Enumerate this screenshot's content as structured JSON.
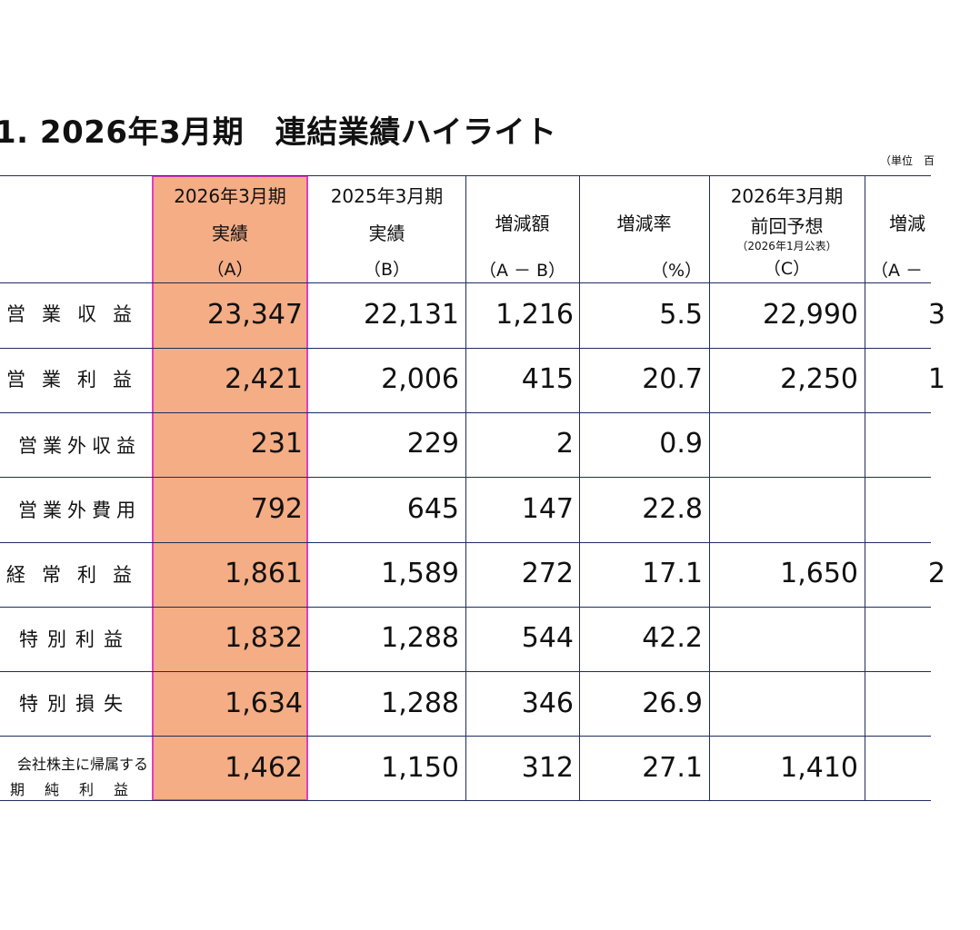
{
  "title": "1. 2026年3月期　連結業績ハイライト",
  "unit_note": "（単位　百",
  "columns": [
    {
      "line1": "2026年3月期",
      "line2": "実績",
      "line3": "（A）"
    },
    {
      "line1": "2025年3月期",
      "line2": "実績",
      "line3": "（B）"
    },
    {
      "line1": "",
      "line2": "増減額",
      "line3": "（A － B）"
    },
    {
      "line1": "",
      "line2": "増減率",
      "line3": "（%）"
    },
    {
      "line1": "2026年3月期",
      "line2": "前回予想",
      "sub": "（2026年1月公表）",
      "line3": "（C）"
    },
    {
      "line1": "",
      "line2": "増減",
      "line3": "（A －"
    }
  ],
  "rows": [
    {
      "label": "営業収益",
      "values": [
        "23,347",
        "22,131",
        "1,216",
        "5.5",
        "22,990",
        "3"
      ]
    },
    {
      "label": "営業利益",
      "values": [
        "2,421",
        "2,006",
        "415",
        "20.7",
        "2,250",
        "1"
      ]
    },
    {
      "label": "営業外収益",
      "values": [
        "231",
        "229",
        "2",
        "0.9",
        "",
        ""
      ]
    },
    {
      "label": "営業外費用",
      "values": [
        "792",
        "645",
        "147",
        "22.8",
        "",
        ""
      ]
    },
    {
      "label": "経常利益",
      "values": [
        "1,861",
        "1,589",
        "272",
        "17.1",
        "1,650",
        "2"
      ]
    },
    {
      "label": "特別利益",
      "values": [
        "1,832",
        "1,288",
        "544",
        "42.2",
        "",
        ""
      ]
    },
    {
      "label": "特別損失",
      "values": [
        "1,634",
        "1,288",
        "346",
        "26.9",
        "",
        ""
      ]
    },
    {
      "label_line1": "会社株主に帰属する",
      "label_line2": "期純利益",
      "values": [
        "1,462",
        "1,150",
        "312",
        "27.1",
        "1,410",
        ""
      ]
    }
  ]
}
